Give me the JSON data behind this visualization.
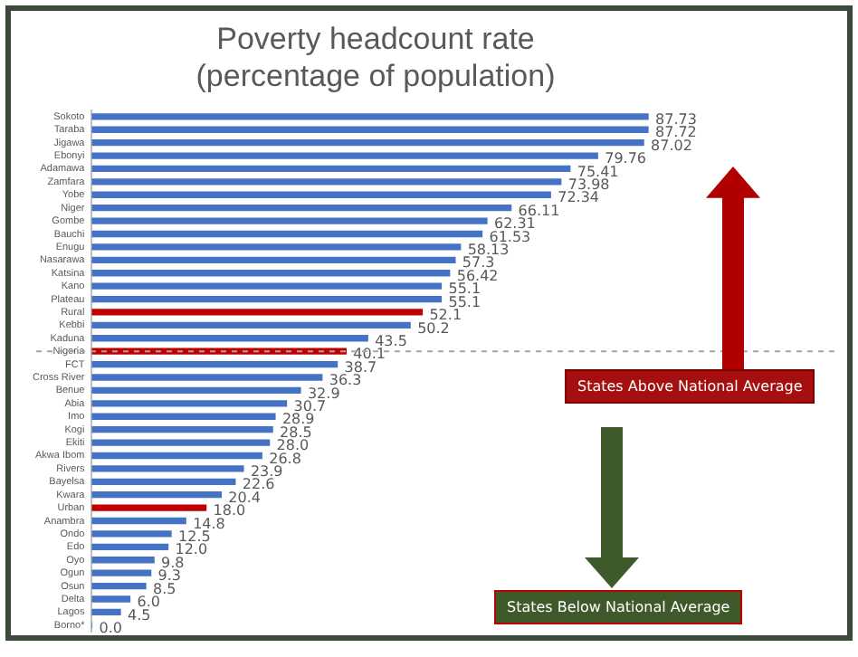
{
  "chart_data": {
    "type": "bar",
    "orientation": "horizontal",
    "title": "Poverty headcount rate",
    "subtitle": "(percentage of population)",
    "categories": [
      "Sokoto",
      "Taraba",
      "Jigawa",
      "Ebonyi",
      "Adamawa",
      "Zamfara",
      "Yobe",
      "Niger",
      "Gombe",
      "Bauchi",
      "Enugu",
      "Nasarawa",
      "Katsina",
      "Kano",
      "Plateau",
      "Rural",
      "Kebbi",
      "Kaduna",
      "Nigeria",
      "FCT",
      "Cross River",
      "Benue",
      "Abia",
      "Imo",
      "Kogi",
      "Ekiti",
      "Akwa Ibom",
      "Rivers",
      "Bayelsa",
      "Kwara",
      "Urban",
      "Anambra",
      "Ondo",
      "Edo",
      "Oyo",
      "Ogun",
      "Osun",
      "Delta",
      "Lagos",
      "Borno*"
    ],
    "values": [
      87.73,
      87.72,
      87.02,
      79.76,
      75.41,
      73.98,
      72.34,
      66.11,
      62.31,
      61.53,
      58.13,
      57.3,
      56.42,
      55.1,
      55.1,
      52.1,
      50.2,
      43.5,
      40.1,
      38.7,
      36.3,
      32.9,
      30.7,
      28.9,
      28.5,
      28.0,
      26.8,
      23.9,
      22.6,
      20.4,
      18.0,
      14.8,
      12.5,
      12.0,
      9.8,
      9.3,
      8.5,
      6.0,
      4.5,
      0.0
    ],
    "value_labels": [
      "87.73",
      "87.72",
      "87.02",
      "79.76",
      "75.41",
      "73.98",
      "72.34",
      "66.11",
      "62.31",
      "61.53",
      "58.13",
      "57.3",
      "56.42",
      "55.1",
      "55.1",
      "52.1",
      "50.2",
      "43.5",
      "40.1",
      "38.7",
      "36.3",
      "32.9",
      "30.7",
      "28.9",
      "28.5",
      "28.0",
      "26.8",
      "23.9",
      "22.6",
      "20.4",
      "18.0",
      "14.8",
      "12.5",
      "12.0",
      "9.8",
      "9.3",
      "8.5",
      "6.0",
      "4.5",
      "0.0"
    ],
    "colors": [
      "#4472c4",
      "#4472c4",
      "#4472c4",
      "#4472c4",
      "#4472c4",
      "#4472c4",
      "#4472c4",
      "#4472c4",
      "#4472c4",
      "#4472c4",
      "#4472c4",
      "#4472c4",
      "#4472c4",
      "#4472c4",
      "#4472c4",
      "#c00000",
      "#4472c4",
      "#4472c4",
      "#c00000",
      "#4472c4",
      "#4472c4",
      "#4472c4",
      "#4472c4",
      "#4472c4",
      "#4472c4",
      "#4472c4",
      "#4472c4",
      "#4472c4",
      "#4472c4",
      "#4472c4",
      "#c00000",
      "#4472c4",
      "#4472c4",
      "#4472c4",
      "#4472c4",
      "#4472c4",
      "#4472c4",
      "#4472c4",
      "#4472c4",
      "#4472c4"
    ],
    "tick_labels": "y",
    "grid": false,
    "legend": false,
    "ref_lines": [
      {
        "axis": "y",
        "value": "Nigeria",
        "line_style": "dashed",
        "color": "#a6a6a6"
      }
    ],
    "annotations": [
      "States Above National Average",
      "States Below National Average"
    ]
  }
}
